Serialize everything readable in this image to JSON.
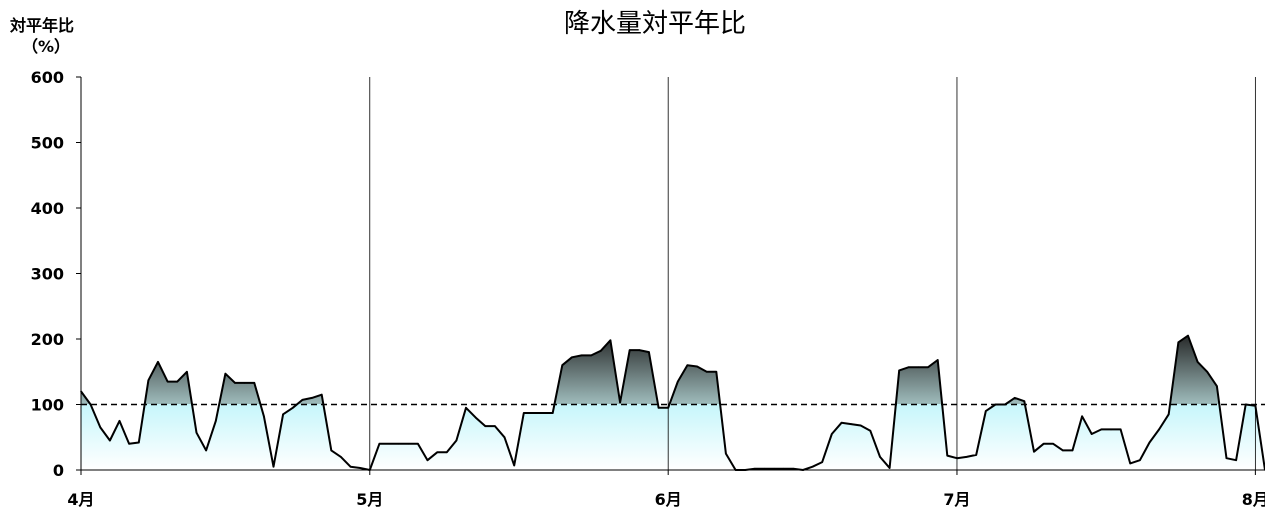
{
  "chart_data": {
    "type": "area",
    "title": "降水量対平年比",
    "ylabel": "対平年比",
    "yunit": "（%）",
    "ylim": [
      0,
      600
    ],
    "yticks": [
      "0",
      "100",
      "200",
      "300",
      "400",
      "500",
      "600"
    ],
    "reference_line": 100,
    "months": [
      {
        "label": "4月",
        "day": 0
      },
      {
        "label": "5月",
        "day": 30
      },
      {
        "label": "6月",
        "day": 61
      },
      {
        "label": "7月",
        "day": 91
      },
      {
        "label": "8月",
        "day": 122
      }
    ],
    "x_start_day": 0,
    "x_end_day": 123,
    "grid": false,
    "colors": {
      "below_top": "#c6f6fb",
      "below_bottom": "#ffffff",
      "above_top": "#1e1e1e",
      "above_bottom": "#9fbcbc",
      "line": "#000000"
    },
    "series": [
      {
        "x": [
          0,
          1,
          2,
          3,
          4,
          5,
          6,
          7,
          8,
          9,
          10,
          11,
          12,
          13,
          14,
          15,
          16,
          17,
          18,
          19,
          20,
          21,
          22,
          23,
          24,
          25,
          26,
          27,
          28,
          29,
          30,
          31,
          32,
          33,
          34,
          35,
          36,
          37,
          38,
          39,
          40,
          41,
          42,
          43,
          44,
          45,
          46,
          47,
          48,
          49,
          50,
          51,
          52,
          53,
          54,
          55,
          56,
          57,
          58,
          59,
          60,
          61,
          62,
          63,
          64,
          65,
          66,
          67,
          68,
          69,
          70,
          71,
          72,
          73,
          74,
          75,
          76,
          77,
          78,
          79,
          80,
          81,
          82,
          83,
          84,
          85,
          86,
          87,
          88,
          89,
          90,
          91,
          92,
          93,
          94,
          95,
          96,
          97,
          98,
          99,
          100,
          101,
          102,
          103,
          104,
          105,
          106,
          107,
          108,
          109,
          110,
          111,
          112,
          113,
          114,
          115,
          116,
          117,
          118,
          119,
          120,
          121,
          122,
          123
        ],
        "values": [
          120,
          100,
          65,
          45,
          75,
          40,
          42,
          137,
          165,
          135,
          135,
          150,
          57,
          30,
          75,
          147,
          133,
          133,
          133,
          82,
          5,
          85,
          95,
          107,
          110,
          115,
          30,
          20,
          5,
          3,
          0,
          40,
          40,
          40,
          40,
          40,
          15,
          27,
          27,
          45,
          95,
          80,
          67,
          67,
          50,
          7,
          87,
          87,
          87,
          87,
          160,
          172,
          175,
          175,
          182,
          198,
          103,
          183,
          183,
          180,
          95,
          95,
          135,
          160,
          158,
          150,
          150,
          25,
          0,
          0,
          2,
          2,
          2,
          2,
          2,
          0,
          5,
          12,
          55,
          72,
          70,
          68,
          60,
          20,
          3,
          152,
          157,
          157,
          157,
          168,
          22,
          18,
          20,
          23,
          90,
          100,
          100,
          110,
          105,
          28,
          40,
          40,
          30,
          30,
          82,
          55,
          62,
          62,
          62,
          10,
          15,
          42,
          62,
          85,
          195,
          205,
          165,
          150,
          128,
          18,
          15,
          100,
          98,
          0
        ]
      }
    ]
  }
}
